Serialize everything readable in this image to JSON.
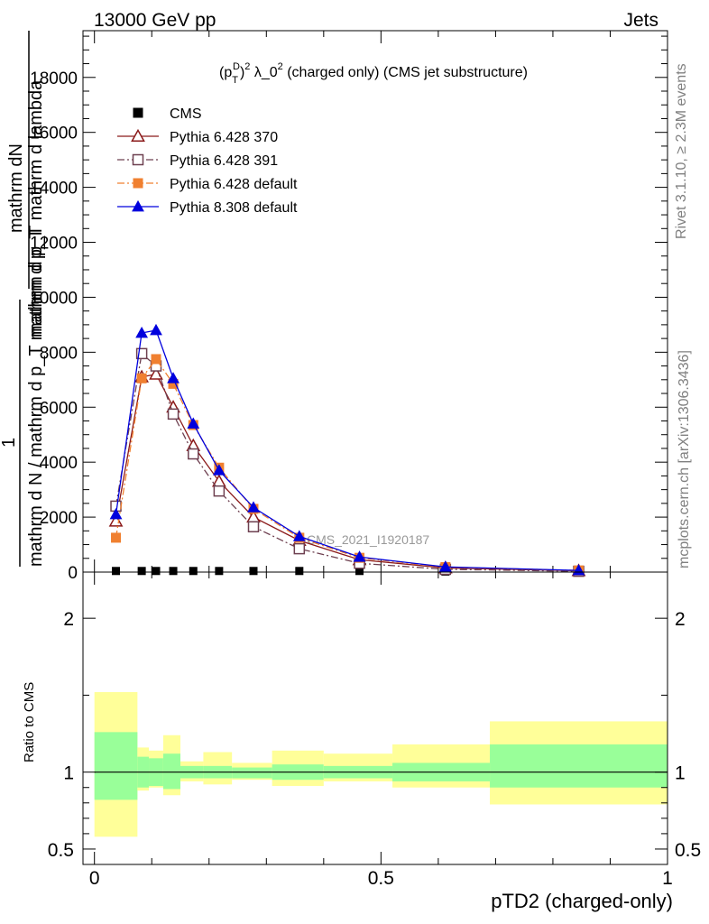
{
  "header": {
    "left": "13000 GeV pp",
    "right": "Jets"
  },
  "side_labels": {
    "rivet": "Rivet 3.1.10, ≥ 2.3M events",
    "mcplots": "mcplots.cern.ch [arXiv:1306.3436]"
  },
  "colors": {
    "cms": "#000000",
    "p370": "#8b1a1a",
    "p391": "#6e4050",
    "p6def": "#f08030",
    "p8def": "#0000dd",
    "band_inner": "#99ff99",
    "band_outer": "#ffff99"
  },
  "chart_data": [
    {
      "type": "line",
      "title": "(p_T^D)^2 λ_0^2 (charged only) (CMS jet substructure)",
      "title_parts": {
        "pre": "(p",
        "sub": "T",
        "sup": "D",
        "post1": ")",
        "sup2": "2",
        "mid": " λ_0",
        "sup3": "2",
        "post": " (charged only) (CMS jet substructure)"
      },
      "watermark": "CMS_2021_I1920187",
      "ylabel_top_num": "mathrm dN",
      "ylabel_top_den": "mathrm d p_T mathrm d lambda",
      "ylabel_one": "1",
      "ylabel_bottom": "mathrm d N / mathrm d p_T mathrm d p_T",
      "ylim": [
        0,
        19700
      ],
      "yticks": [
        0,
        2000,
        4000,
        6000,
        8000,
        10000,
        12000,
        14000,
        16000,
        18000
      ],
      "ytick_labels": [
        "0",
        "2000",
        "4000",
        "6000",
        "8000",
        "10000",
        "12000",
        "14000",
        "16000",
        "18000"
      ],
      "x": [
        0.0375,
        0.0825,
        0.1075,
        0.1375,
        0.1725,
        0.2175,
        0.2775,
        0.3575,
        0.4625,
        0.6125,
        0.845
      ],
      "series": [
        {
          "name": "CMS",
          "key": "cms",
          "marker": "square-filled",
          "line": "none",
          "values": [
            40,
            40,
            40,
            40,
            40,
            40,
            40,
            40,
            40,
            20,
            10
          ]
        },
        {
          "name": "Pythia 6.428 370",
          "key": "p370",
          "marker": "triangle-open",
          "line": "solid",
          "values": [
            1850,
            7100,
            7200,
            6000,
            4600,
            3300,
            2000,
            1150,
            450,
            150,
            50
          ]
        },
        {
          "name": "Pythia 6.428 391",
          "key": "p391",
          "marker": "square-open",
          "line": "dashdot",
          "values": [
            2400,
            7950,
            7500,
            5750,
            4300,
            2950,
            1650,
            850,
            320,
            100,
            30
          ]
        },
        {
          "name": "Pythia 6.428 default",
          "key": "p6def",
          "marker": "square-filled",
          "line": "dashdot",
          "values": [
            1250,
            7050,
            7750,
            6850,
            5350,
            3800,
            2300,
            1250,
            520,
            180,
            60
          ]
        },
        {
          "name": "Pythia 8.308 default",
          "key": "p8def",
          "marker": "triangle-filled",
          "line": "solid",
          "values": [
            2100,
            8700,
            8800,
            7050,
            5400,
            3700,
            2350,
            1300,
            550,
            190,
            60
          ]
        }
      ]
    },
    {
      "type": "area",
      "ylabel": "Ratio to CMS",
      "xlabel": "pTD2 (charged-only)",
      "xlim": [
        -0.02,
        1.0
      ],
      "ylim": [
        0.4,
        2.3
      ],
      "xticks": [
        0,
        0.5,
        1
      ],
      "xtick_labels": [
        "0",
        "0.5",
        "1"
      ],
      "yticks": [
        0.5,
        1,
        2
      ],
      "ytick_labels": [
        "0.5",
        "1",
        "2"
      ],
      "reference": 1,
      "bins": [
        {
          "lo": 0.0,
          "hi": 0.075,
          "inner": [
            0.82,
            1.26
          ],
          "outer": [
            0.58,
            1.52
          ]
        },
        {
          "lo": 0.075,
          "hi": 0.095,
          "inner": [
            0.9,
            1.1
          ],
          "outer": [
            0.88,
            1.16
          ]
        },
        {
          "lo": 0.095,
          "hi": 0.12,
          "inner": [
            0.91,
            1.09
          ],
          "outer": [
            0.9,
            1.14
          ]
        },
        {
          "lo": 0.12,
          "hi": 0.15,
          "inner": [
            0.89,
            1.12
          ],
          "outer": [
            0.85,
            1.24
          ]
        },
        {
          "lo": 0.15,
          "hi": 0.19,
          "inner": [
            0.96,
            1.04
          ],
          "outer": [
            0.94,
            1.07
          ]
        },
        {
          "lo": 0.19,
          "hi": 0.24,
          "inner": [
            0.96,
            1.04
          ],
          "outer": [
            0.92,
            1.13
          ]
        },
        {
          "lo": 0.24,
          "hi": 0.31,
          "inner": [
            0.96,
            1.03
          ],
          "outer": [
            0.95,
            1.06
          ]
        },
        {
          "lo": 0.31,
          "hi": 0.4,
          "inner": [
            0.95,
            1.05
          ],
          "outer": [
            0.91,
            1.14
          ]
        },
        {
          "lo": 0.4,
          "hi": 0.52,
          "inner": [
            0.96,
            1.04
          ],
          "outer": [
            0.94,
            1.12
          ]
        },
        {
          "lo": 0.52,
          "hi": 0.69,
          "inner": [
            0.94,
            1.06
          ],
          "outer": [
            0.9,
            1.18
          ]
        },
        {
          "lo": 0.69,
          "hi": 1.0,
          "inner": [
            0.9,
            1.18
          ],
          "outer": [
            0.79,
            1.33
          ]
        }
      ]
    }
  ]
}
